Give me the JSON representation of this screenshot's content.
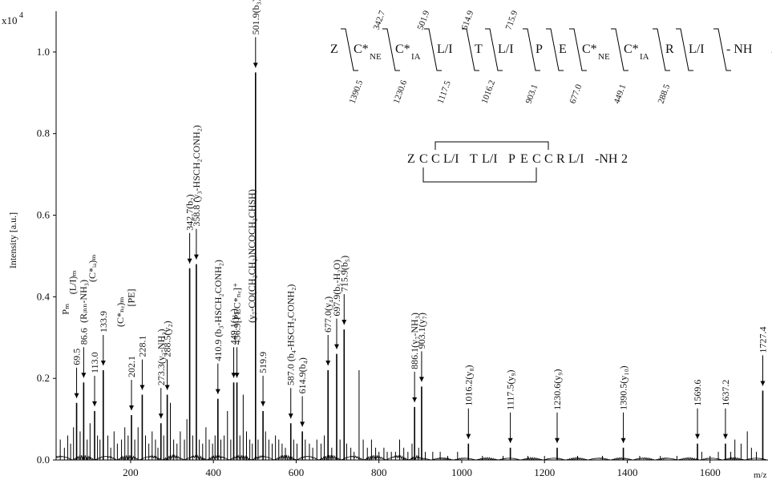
{
  "chart_data": {
    "type": "bar",
    "ylabel": "Intensity [a.u.]",
    "xlabel": "m/z",
    "y_multiplier": "x10",
    "y_multiplier_exp": "4",
    "xlim": [
      20,
      1740
    ],
    "ylim": [
      0,
      1.1
    ],
    "x_ticks": [
      200,
      400,
      600,
      800,
      1000,
      1200,
      1400,
      1600
    ],
    "y_ticks": [
      0.0,
      0.2,
      0.4,
      0.6,
      0.8,
      1.0
    ],
    "x_tick_labels": [
      "200",
      "400",
      "600",
      "800",
      "1000",
      "1200",
      "1400",
      "1600"
    ],
    "y_tick_labels": [
      "0.0",
      "0.2",
      "0.4",
      "0.6",
      "0.8",
      "1.0"
    ],
    "peaks": [
      {
        "mz": 69.5,
        "i": 0.14,
        "label": "69.5"
      },
      {
        "mz": 86.6,
        "i": 0.19,
        "label": "86.6"
      },
      {
        "mz": 113.0,
        "i": 0.12,
        "label": "113.0"
      },
      {
        "mz": 133.9,
        "i": 0.22,
        "label": "133.9"
      },
      {
        "mz": 202.1,
        "i": 0.11,
        "label": "202.1"
      },
      {
        "mz": 228.1,
        "i": 0.16,
        "label": "228.1"
      },
      {
        "mz": 273.3,
        "i": 0.09,
        "label": "273.3(y₂-NH₃)"
      },
      {
        "mz": 288.5,
        "i": 0.16,
        "label": "288.5(y₂)"
      },
      {
        "mz": 342.7,
        "i": 0.47,
        "label": "342.7(b₂)"
      },
      {
        "mz": 358.8,
        "i": 0.48,
        "label": "358.8 (y₃-HSCH₂CONH₂)"
      },
      {
        "mz": 410.9,
        "i": 0.15,
        "label": "410.9 (b₃-HSCH₂CONH₂)"
      },
      {
        "mz": 449.1,
        "i": 0.19,
        "label": "449.1(y₃)"
      },
      {
        "mz": 456.9,
        "i": 0.19,
        "label": "456.9[PEC*ₙₑ]⁺"
      },
      {
        "mz": 501.9,
        "i": 0.95,
        "label": "501.9(b₃)"
      },
      {
        "mz": 519.9,
        "i": 0.12,
        "label": "519.9"
      },
      {
        "mz": 587.0,
        "i": 0.09,
        "label": "587.0 (b₄-HSCH₂CONH₂)"
      },
      {
        "mz": 614.9,
        "i": 0.07,
        "label": "614.9(b₄)"
      },
      {
        "mz": 677.0,
        "i": 0.22,
        "label": "677.0(y₄)"
      },
      {
        "mz": 697.9,
        "i": 0.26,
        "label": "697.9(b₅-H₂O)"
      },
      {
        "mz": 715.9,
        "i": 0.32,
        "label": "715.9(b₅)"
      },
      {
        "mz": 886.1,
        "i": 0.13,
        "label": "886.1(y₇-NH₃)"
      },
      {
        "mz": 903.1,
        "i": 0.18,
        "label": "903.1(y₇)"
      },
      {
        "mz": 1016.2,
        "i": 0.04,
        "label": "1016.2(y₈)"
      },
      {
        "mz": 1117.5,
        "i": 0.03,
        "label": "1117.5(y₉)"
      },
      {
        "mz": 1230.6,
        "i": 0.03,
        "label": "1230.6(y₉)"
      },
      {
        "mz": 1390.5,
        "i": 0.03,
        "label": "1390.5(y₁₀)"
      },
      {
        "mz": 1569.6,
        "i": 0.04,
        "label": "1569.6"
      },
      {
        "mz": 1637.2,
        "i": 0.04,
        "label": "1637.2"
      },
      {
        "mz": 1727.4,
        "i": 0.17,
        "label": "1727.4"
      }
    ],
    "minor_peaks": [
      [
        30,
        0.05
      ],
      [
        40,
        0.03
      ],
      [
        48,
        0.06
      ],
      [
        55,
        0.04
      ],
      [
        62,
        0.08
      ],
      [
        78,
        0.07
      ],
      [
        95,
        0.05
      ],
      [
        102,
        0.09
      ],
      [
        120,
        0.06
      ],
      [
        126,
        0.05
      ],
      [
        145,
        0.06
      ],
      [
        152,
        0.03
      ],
      [
        160,
        0.07
      ],
      [
        168,
        0.04
      ],
      [
        178,
        0.05
      ],
      [
        186,
        0.08
      ],
      [
        194,
        0.06
      ],
      [
        210,
        0.05
      ],
      [
        218,
        0.08
      ],
      [
        236,
        0.06
      ],
      [
        244,
        0.04
      ],
      [
        252,
        0.07
      ],
      [
        260,
        0.05
      ],
      [
        266,
        0.03
      ],
      [
        280,
        0.06
      ],
      [
        296,
        0.14
      ],
      [
        304,
        0.05
      ],
      [
        312,
        0.04
      ],
      [
        320,
        0.07
      ],
      [
        330,
        0.05
      ],
      [
        336,
        0.1
      ],
      [
        350,
        0.06
      ],
      [
        366,
        0.05
      ],
      [
        374,
        0.04
      ],
      [
        382,
        0.08
      ],
      [
        390,
        0.05
      ],
      [
        398,
        0.04
      ],
      [
        404,
        0.06
      ],
      [
        418,
        0.05
      ],
      [
        426,
        0.06
      ],
      [
        434,
        0.12
      ],
      [
        442,
        0.05
      ],
      [
        464,
        0.06
      ],
      [
        472,
        0.16
      ],
      [
        480,
        0.07
      ],
      [
        488,
        0.05
      ],
      [
        494,
        0.04
      ],
      [
        508,
        0.05
      ],
      [
        526,
        0.07
      ],
      [
        534,
        0.05
      ],
      [
        542,
        0.04
      ],
      [
        550,
        0.06
      ],
      [
        558,
        0.05
      ],
      [
        566,
        0.04
      ],
      [
        574,
        0.03
      ],
      [
        594,
        0.05
      ],
      [
        602,
        0.04
      ],
      [
        622,
        0.05
      ],
      [
        632,
        0.04
      ],
      [
        640,
        0.03
      ],
      [
        650,
        0.05
      ],
      [
        660,
        0.04
      ],
      [
        668,
        0.06
      ],
      [
        686,
        0.03
      ],
      [
        706,
        0.05
      ],
      [
        722,
        0.04
      ],
      [
        732,
        0.03
      ],
      [
        740,
        0.02
      ],
      [
        752,
        0.22
      ],
      [
        762,
        0.05
      ],
      [
        772,
        0.03
      ],
      [
        782,
        0.05
      ],
      [
        792,
        0.03
      ],
      [
        800,
        0.02
      ],
      [
        812,
        0.03
      ],
      [
        820,
        0.02
      ],
      [
        830,
        0.02
      ],
      [
        840,
        0.02
      ],
      [
        850,
        0.05
      ],
      [
        860,
        0.03
      ],
      [
        870,
        0.02
      ],
      [
        880,
        0.04
      ],
      [
        896,
        0.03
      ],
      [
        912,
        0.02
      ],
      [
        930,
        0.02
      ],
      [
        948,
        0.02
      ],
      [
        966,
        0.01
      ],
      [
        990,
        0.02
      ],
      [
        1050,
        0.01
      ],
      [
        1100,
        0.01
      ],
      [
        1160,
        0.01
      ],
      [
        1200,
        0.01
      ],
      [
        1280,
        0.01
      ],
      [
        1340,
        0.01
      ],
      [
        1430,
        0.01
      ],
      [
        1480,
        0.01
      ],
      [
        1520,
        0.01
      ],
      [
        1580,
        0.02
      ],
      [
        1600,
        0.01
      ],
      [
        1620,
        0.02
      ],
      [
        1650,
        0.02
      ],
      [
        1660,
        0.05
      ],
      [
        1675,
        0.04
      ],
      [
        1690,
        0.07
      ],
      [
        1700,
        0.03
      ],
      [
        1712,
        0.02
      ]
    ],
    "annotations": [
      {
        "text": "Pₘ",
        "mz": 69.5,
        "i": 0.14
      },
      {
        "text": "(L/I)ₘ",
        "mz": 86.6,
        "i": 0.19
      },
      {
        "text": "(Rᵢₙₙ-NH₃)",
        "mz": 113.0,
        "i": 0.12
      },
      {
        "text": "(C*ᵢₐ)ₘ",
        "mz": 133.9,
        "i": 0.22
      },
      {
        "text": "(C*ₙₑ)ₘ",
        "mz": 202.1,
        "i": 0.11
      },
      {
        "text": "[PE]",
        "mz": 228.1,
        "i": 0.16
      },
      {
        "text": "(y₇-CO(CH₂CH₂)NCOCH₂CHSH)",
        "mz": 519.9,
        "i": 0.12
      }
    ],
    "sequence_top": {
      "residues": [
        "Z",
        "C*",
        "C*",
        "L/I",
        "T",
        "L/I",
        "P",
        "E",
        "C*",
        "C*",
        "R",
        "L/I",
        "- NH",
        "2"
      ],
      "subscripts": [
        "",
        "NE",
        "IA",
        "",
        "",
        "",
        "",
        "",
        "NE",
        "IA",
        "",
        "",
        "",
        ""
      ],
      "b_ions": [
        "342.7",
        "501.9",
        "614.9",
        "715.9"
      ],
      "y_ions": [
        "1390.5",
        "1230.6",
        "1117.5",
        "1016.2",
        "903.1",
        "677.0",
        "449.1",
        "288.5"
      ]
    },
    "sequence_bottom": [
      "Z",
      "C",
      "C",
      "L/I",
      "T",
      "L/I",
      "P",
      "E",
      "C",
      "C",
      "R",
      "L/I",
      "-NH",
      "2"
    ]
  }
}
